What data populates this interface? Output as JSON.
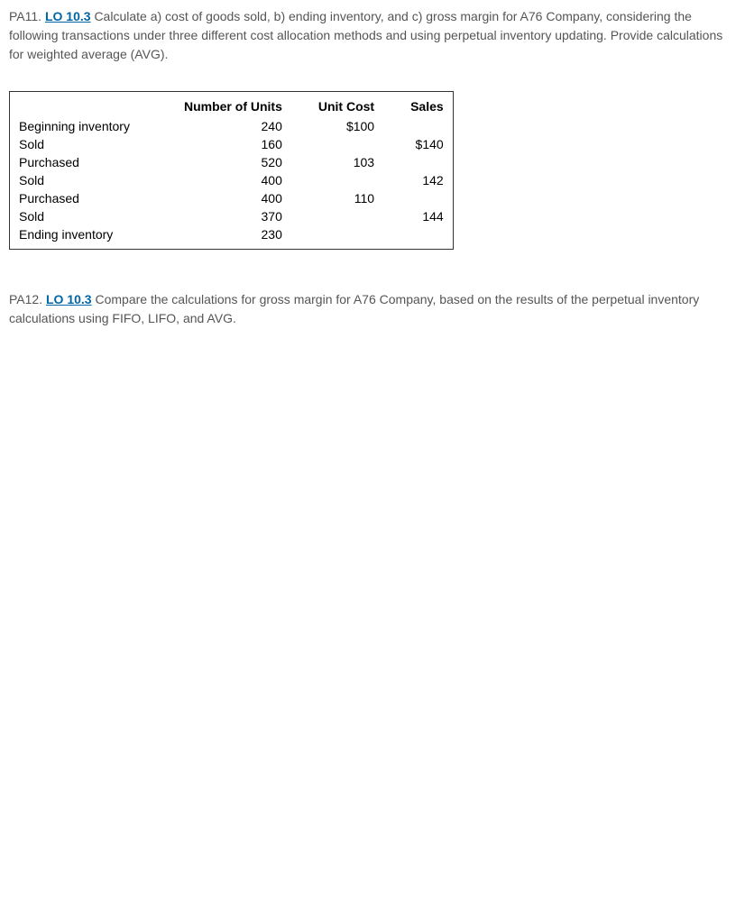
{
  "pa11": {
    "label": "PA11.",
    "lo_link": "LO 10.3",
    "text": "Calculate a) cost of goods sold, b) ending inventory, and c) gross margin for A76 Company, considering the following transactions under three different cost allocation methods and using perpetual inventory updating. Provide calculations for weighted average (AVG)."
  },
  "table": {
    "headers": {
      "col1": "",
      "col2": "Number of Units",
      "col3": "Unit Cost",
      "col4": "Sales"
    },
    "rows": [
      {
        "label": "Beginning inventory",
        "units": "240",
        "cost": "$100",
        "sales": ""
      },
      {
        "label": "Sold",
        "units": "160",
        "cost": "",
        "sales": "$140"
      },
      {
        "label": "Purchased",
        "units": "520",
        "cost": "103",
        "sales": ""
      },
      {
        "label": "Sold",
        "units": "400",
        "cost": "",
        "sales": "142"
      },
      {
        "label": "Purchased",
        "units": "400",
        "cost": "110",
        "sales": ""
      },
      {
        "label": "Sold",
        "units": "370",
        "cost": "",
        "sales": "144"
      },
      {
        "label": "Ending inventory",
        "units": "230",
        "cost": "",
        "sales": ""
      }
    ]
  },
  "pa12": {
    "label": "PA12.",
    "lo_link": "LO 10.3",
    "text": "Compare the calculations for gross margin for A76 Company, based on the results of the perpetual inventory calculations using FIFO, LIFO, and AVG."
  }
}
